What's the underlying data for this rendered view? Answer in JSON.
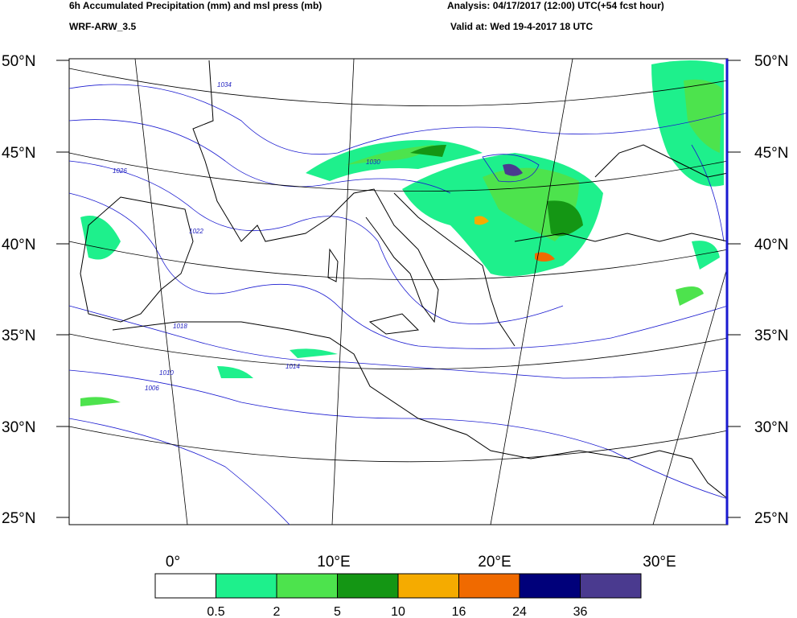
{
  "header": {
    "title": "6h Accumulated Precipitation (mm) and msl press (mb)",
    "model": "WRF-ARW_3.5",
    "analysis": "Analysis: 04/17/2017 (12:00) UTC(+54 fcst hour)",
    "valid": "Valid at: Wed 19-4-2017 18 UTC"
  },
  "map": {
    "lat_labels": [
      "50°N",
      "45°N",
      "40°N",
      "35°N",
      "30°N",
      "25°N"
    ],
    "lon_labels": [
      "0°",
      "10°E",
      "20°E",
      "30°E"
    ],
    "isobar_labels": [
      "1034",
      "1030",
      "1026",
      "1022",
      "1018",
      "1014",
      "1010",
      "1006"
    ]
  },
  "legend": {
    "colors": [
      "#ffffff",
      "#1ef08c",
      "#4de34d",
      "#149614",
      "#f5ab00",
      "#f06a00",
      "#00007a",
      "#4a3a8f"
    ],
    "levels": [
      0.5,
      2,
      5,
      10,
      16,
      24,
      36
    ]
  }
}
